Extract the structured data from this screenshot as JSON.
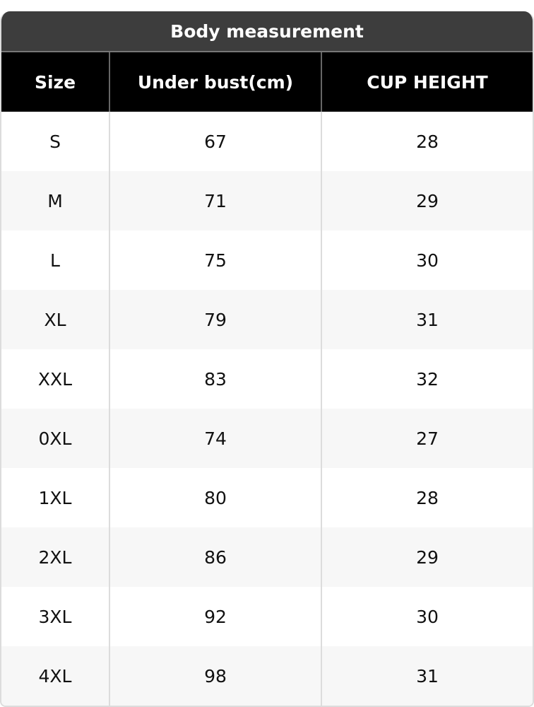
{
  "title": "Body measurement",
  "headers": [
    "Size",
    "Under bust(cm)",
    "CUP HEIGHT"
  ],
  "rows": [
    [
      "S",
      "67",
      "28"
    ],
    [
      "M",
      "71",
      "29"
    ],
    [
      "L",
      "75",
      "30"
    ],
    [
      "XL",
      "79",
      "31"
    ],
    [
      "XXL",
      "83",
      "32"
    ],
    [
      "0XL",
      "74",
      "27"
    ],
    [
      "1XL",
      "80",
      "28"
    ],
    [
      "2XL",
      "86",
      "29"
    ],
    [
      "3XL",
      "92",
      "30"
    ],
    [
      "4XL",
      "98",
      "31"
    ]
  ]
}
